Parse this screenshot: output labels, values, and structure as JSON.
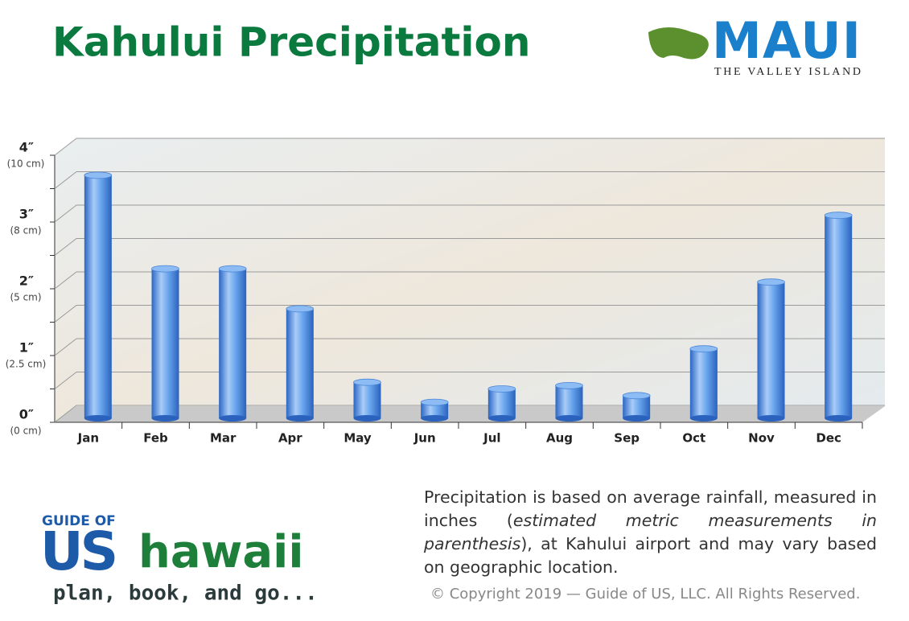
{
  "chart_data": {
    "type": "bar",
    "title": "Kahului Precipitation",
    "categories": [
      "Jan",
      "Feb",
      "Mar",
      "Apr",
      "May",
      "Jun",
      "Jul",
      "Aug",
      "Sep",
      "Oct",
      "Nov",
      "Dec"
    ],
    "values": [
      3.7,
      2.3,
      2.3,
      1.7,
      0.6,
      0.3,
      0.5,
      0.55,
      0.4,
      1.1,
      2.1,
      3.1
    ],
    "color": "#4a8fe0",
    "ylim": [
      0,
      4
    ],
    "yticks": [
      {
        "value": 0,
        "label": "0″"
      },
      {
        "value": 1,
        "label": "1″"
      },
      {
        "value": 2,
        "label": "2″"
      },
      {
        "value": 3,
        "label": "3″"
      },
      {
        "value": 4,
        "label": "4″"
      }
    ],
    "ytick_metric_labels": [
      "(0 cm)",
      "(2.5 cm)",
      "(5 cm)",
      "(8 cm)",
      "(10 cm)"
    ],
    "minor_yticks": [
      0.5,
      1.5,
      2.5,
      3.5
    ],
    "grid": true
  },
  "header": {
    "logo_title": "MAUI",
    "logo_subtitle": "THE VALLEY ISLAND"
  },
  "footer": {
    "note": [
      "Precipitation is based on average rainfall, measured in inches (",
      "estimated metric measurements in parenthesis",
      "), at Kahului airport and may vary based on geographic location."
    ],
    "copyright": "© Copyright 2019 — Guide of US, LLC. All Rights Reserved.",
    "logo_top": "GUIDE OF",
    "logo_us": "US",
    "logo_hawaii": "hawaii",
    "logo_tagline": "plan, book, and go..."
  }
}
